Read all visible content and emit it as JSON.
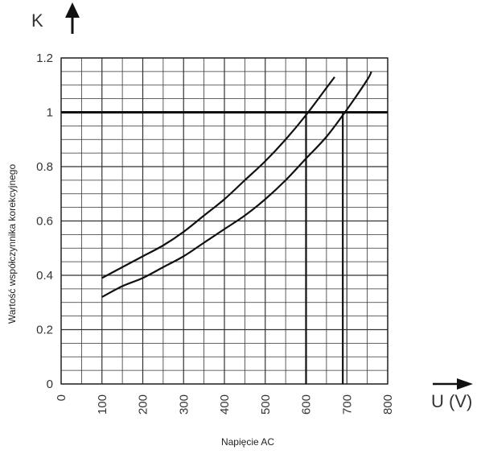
{
  "chart_data": {
    "type": "line",
    "title": "",
    "y_axis_symbol": "K",
    "x_axis_symbol": "U (V)",
    "ylabel": "Wartość współczynnika korekcyjnego",
    "xlabel": "Napięcie AC",
    "xlim": [
      0,
      800
    ],
    "ylim": [
      0,
      1.2
    ],
    "x_ticks": [
      "0",
      "100",
      "200",
      "300",
      "400",
      "500",
      "600",
      "700",
      "800"
    ],
    "y_ticks": [
      "0",
      "0.2",
      "0.4",
      "0.6",
      "0.8",
      "1",
      "1.2"
    ],
    "grid": true,
    "reference_line_y": 1,
    "series": [
      {
        "x": [
          100,
          150,
          200,
          250,
          300,
          350,
          400,
          450,
          500,
          550,
          600,
          650,
          670
        ],
        "y": [
          0.39,
          0.43,
          0.47,
          0.51,
          0.56,
          0.62,
          0.68,
          0.75,
          0.82,
          0.9,
          0.99,
          1.09,
          1.13
        ]
      },
      {
        "x": [
          100,
          150,
          200,
          250,
          300,
          350,
          400,
          450,
          500,
          550,
          600,
          650,
          700,
          750,
          760
        ],
        "y": [
          0.32,
          0.36,
          0.39,
          0.43,
          0.47,
          0.52,
          0.57,
          0.62,
          0.68,
          0.75,
          0.83,
          0.91,
          1.01,
          1.12,
          1.15
        ]
      }
    ],
    "vertical_markers": [
      600,
      690
    ]
  }
}
